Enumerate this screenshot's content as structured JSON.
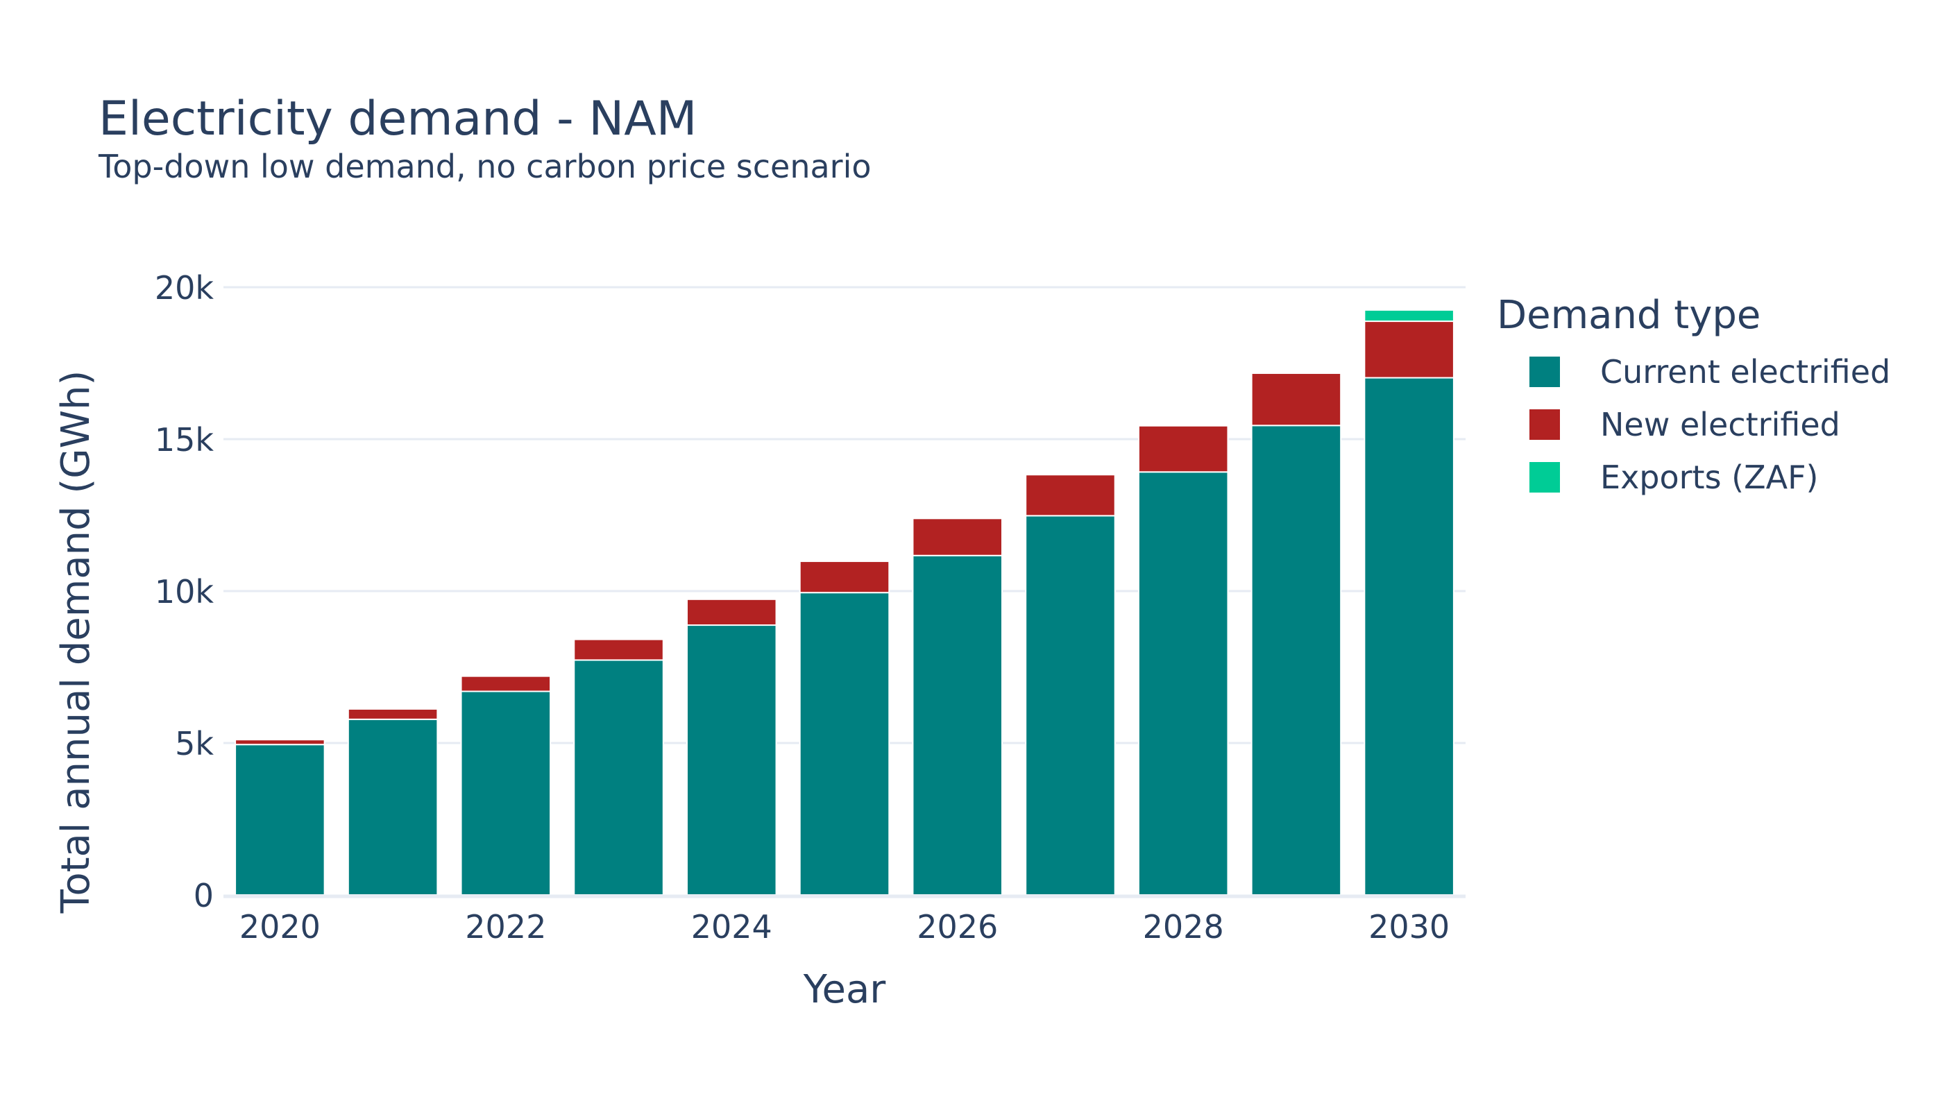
{
  "chart_data": {
    "type": "bar",
    "stacked": true,
    "title": "Electricity demand - NAM",
    "subtitle": "Top-down low demand, no carbon price scenario",
    "xlabel": "Year",
    "ylabel": "Total annual demand (GWh)",
    "x": [
      2020,
      2021,
      2022,
      2023,
      2024,
      2025,
      2026,
      2027,
      2028,
      2029,
      2030
    ],
    "x_ticks": [
      "2020",
      "2022",
      "2024",
      "2026",
      "2028",
      "2030"
    ],
    "ylim": [
      0,
      20000
    ],
    "y_ticks": [
      {
        "value": 0,
        "label": "0"
      },
      {
        "value": 5000,
        "label": "5k"
      },
      {
        "value": 10000,
        "label": "10k"
      },
      {
        "value": 15000,
        "label": "15k"
      },
      {
        "value": 20000,
        "label": "20k"
      }
    ],
    "grid": true,
    "legend_title": "Demand type",
    "legend_position": "right",
    "series": [
      {
        "name": "Current electrified",
        "color": "#008080",
        "values": [
          4950,
          5780,
          6700,
          7730,
          8880,
          9950,
          11170,
          12480,
          13920,
          15450,
          17020
        ]
      },
      {
        "name": "New electrified",
        "color": "#b22222",
        "values": [
          160,
          340,
          500,
          680,
          850,
          1030,
          1220,
          1350,
          1520,
          1720,
          1860
        ]
      },
      {
        "name": "Exports (ZAF)",
        "color": "#00cc96",
        "values": [
          0,
          0,
          0,
          0,
          0,
          0,
          0,
          0,
          0,
          0,
          370
        ]
      }
    ]
  }
}
